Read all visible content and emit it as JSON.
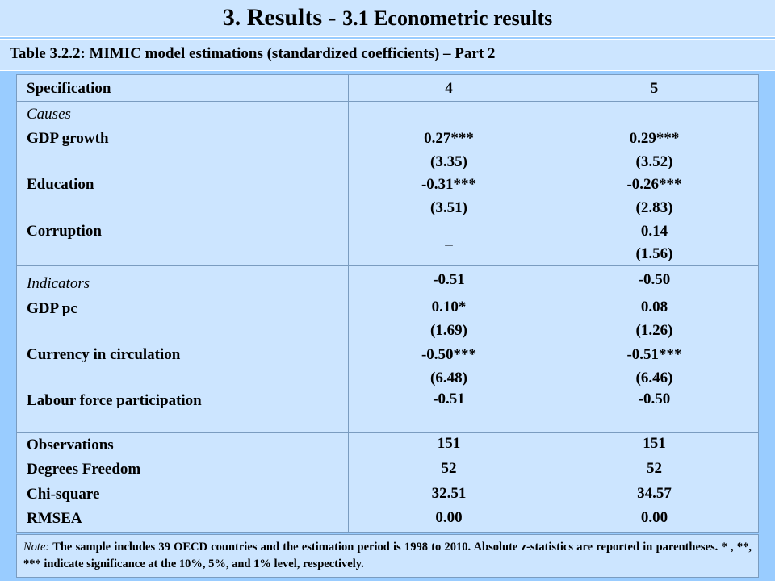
{
  "header": {
    "title_main": "3. Results - ",
    "title_sub": "3.1 Econometric results"
  },
  "caption": "Table 3.2.2:  MIMIC model estimations (standardized coefficients) – Part 2",
  "table": {
    "header": {
      "label": "Specification",
      "col4": "4",
      "col5": "5"
    },
    "causes_heading": "Causes",
    "causes": [
      {
        "label": "GDP growth",
        "col4": "0.27***",
        "col4_z": "(3.35)",
        "col5": "0.29***",
        "col5_z": "(3.52)"
      },
      {
        "label": "Education",
        "col4": "-0.31***",
        "col4_z": "(3.51)",
        "col5": "-0.26***",
        "col5_z": "(2.83)"
      },
      {
        "label": "Corruption",
        "col4": "_",
        "col4_z": "",
        "col5": "0.14",
        "col5_z": "(1.56)"
      }
    ],
    "indicators_heading": "Indicators",
    "indicators_heading_col4": "-0.51",
    "indicators_heading_col5": "-0.50",
    "indicators": [
      {
        "label": "GDP pc",
        "col4": "0.10*",
        "col4_z": "(1.69)",
        "col5": "0.08",
        "col5_z": "(1.26)"
      },
      {
        "label": "Currency in circulation",
        "col4": "-0.50***",
        "col4_z": "(6.48)",
        "col5": "-0.51***",
        "col5_z": "(6.46)"
      },
      {
        "label": "Labour force participation",
        "col4": "-0.51",
        "col4_z": "",
        "col5": "-0.50",
        "col5_z": ""
      }
    ],
    "stats": [
      {
        "label": "Observations",
        "col4": "151",
        "col5": "151"
      },
      {
        "label": "Degrees Freedom",
        "col4": "52",
        "col5": "52"
      },
      {
        "label": "Chi-square",
        "col4": "32.51",
        "col5": "34.57"
      },
      {
        "label": "RMSEA",
        "col4": "0.00",
        "col5": "0.00"
      }
    ]
  },
  "note": {
    "label": "Note:",
    "text": " The sample includes 39 OECD countries and the estimation period is 1998 to 2010. Absolute z-statistics are reported in parentheses. * , **, *** indicate significance at the 10%, 5%, and 1% level, respectively."
  }
}
